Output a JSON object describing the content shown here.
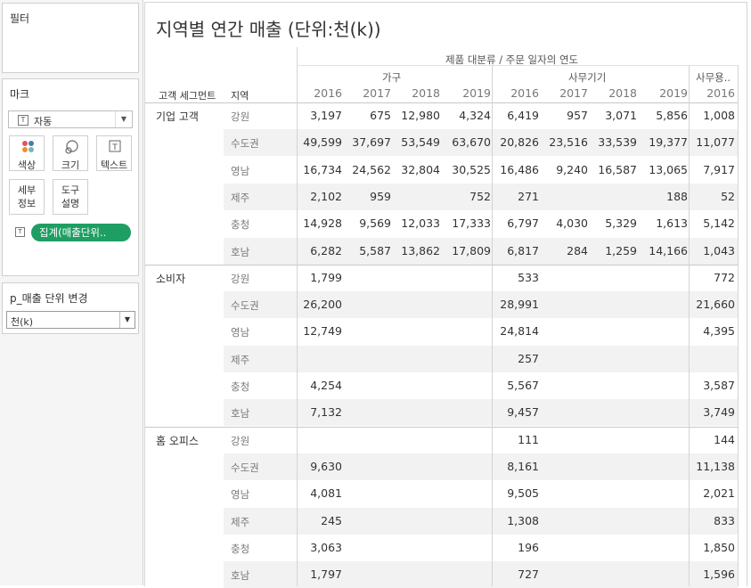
{
  "sidebar": {
    "filters_title": "필터",
    "marks_title": "마크",
    "mark_type": "자동",
    "mark_buttons": {
      "color": "색상",
      "size": "크기",
      "text": "텍스트",
      "detail": "세부\n정보",
      "tooltip": "도구\n설명"
    },
    "measure_pill": "집계(매출단위..",
    "parameter_title": "p_매출 단위 변경",
    "parameter_value": "천(k)"
  },
  "view": {
    "title": "지역별 연간 매출 (단위:천(k))",
    "column_header": "제품 대분류 / 주문 일자의 연도",
    "row_headers": [
      "고객 세그먼트",
      "지역"
    ],
    "categories": [
      "가구",
      "사무기기",
      "사무용.."
    ],
    "years": [
      "2016",
      "2017",
      "2018",
      "2019",
      "2016",
      "2017",
      "2018",
      "2019",
      "2016"
    ],
    "segments": [
      {
        "name": "기업 고객",
        "rows": [
          {
            "region": "강원",
            "values": [
              "3,197",
              "675",
              "12,980",
              "4,324",
              "6,419",
              "957",
              "3,071",
              "5,856",
              "1,008"
            ]
          },
          {
            "region": "수도권",
            "values": [
              "49,599",
              "37,697",
              "53,549",
              "63,670",
              "20,826",
              "23,516",
              "33,539",
              "19,377",
              "11,077"
            ]
          },
          {
            "region": "영남",
            "values": [
              "16,734",
              "24,562",
              "32,804",
              "30,525",
              "16,486",
              "9,240",
              "16,587",
              "13,065",
              "7,917"
            ]
          },
          {
            "region": "제주",
            "values": [
              "2,102",
              "959",
              "",
              "752",
              "271",
              "",
              "",
              "188",
              "52"
            ]
          },
          {
            "region": "충청",
            "values": [
              "14,928",
              "9,569",
              "12,033",
              "17,333",
              "6,797",
              "4,030",
              "5,329",
              "1,613",
              "5,142"
            ]
          },
          {
            "region": "호남",
            "values": [
              "6,282",
              "5,587",
              "13,862",
              "17,809",
              "6,817",
              "284",
              "1,259",
              "14,166",
              "1,043"
            ]
          }
        ]
      },
      {
        "name": "소비자",
        "rows": [
          {
            "region": "강원",
            "values": [
              "1,799",
              "",
              "",
              "",
              "533",
              "",
              "",
              "",
              "772"
            ]
          },
          {
            "region": "수도권",
            "values": [
              "26,200",
              "",
              "",
              "",
              "28,991",
              "",
              "",
              "",
              "21,660"
            ]
          },
          {
            "region": "영남",
            "values": [
              "12,749",
              "",
              "",
              "",
              "24,814",
              "",
              "",
              "",
              "4,395"
            ]
          },
          {
            "region": "제주",
            "values": [
              "",
              "",
              "",
              "",
              "257",
              "",
              "",
              "",
              ""
            ]
          },
          {
            "region": "충청",
            "values": [
              "4,254",
              "",
              "",
              "",
              "5,567",
              "",
              "",
              "",
              "3,587"
            ]
          },
          {
            "region": "호남",
            "values": [
              "7,132",
              "",
              "",
              "",
              "9,457",
              "",
              "",
              "",
              "3,749"
            ]
          }
        ]
      },
      {
        "name": "홈 오피스",
        "rows": [
          {
            "region": "강원",
            "values": [
              "",
              "",
              "",
              "",
              "111",
              "",
              "",
              "",
              "144"
            ]
          },
          {
            "region": "수도권",
            "values": [
              "9,630",
              "",
              "",
              "",
              "8,161",
              "",
              "",
              "",
              "11,138"
            ]
          },
          {
            "region": "영남",
            "values": [
              "4,081",
              "",
              "",
              "",
              "9,505",
              "",
              "",
              "",
              "2,021"
            ]
          },
          {
            "region": "제주",
            "values": [
              "245",
              "",
              "",
              "",
              "1,308",
              "",
              "",
              "",
              "833"
            ]
          },
          {
            "region": "충청",
            "values": [
              "3,063",
              "",
              "",
              "",
              "196",
              "",
              "",
              "",
              "1,850"
            ]
          },
          {
            "region": "호남",
            "values": [
              "1,797",
              "",
              "",
              "",
              "727",
              "",
              "",
              "",
              "1,596"
            ]
          }
        ]
      }
    ]
  },
  "colors": {
    "pill": "#1f9e63",
    "band": "#f2f2f2",
    "grid": "#d4d4d4"
  }
}
